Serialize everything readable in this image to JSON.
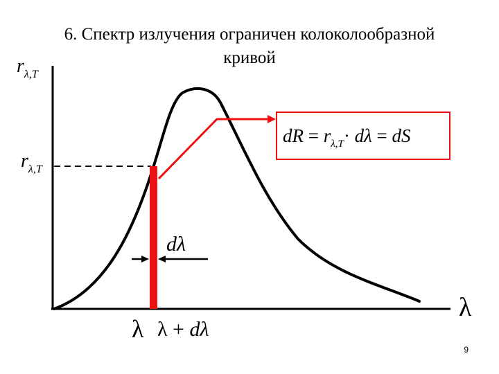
{
  "title": {
    "line1": "6. Спектр излучения ограничен колоколообразной",
    "line2": "кривой"
  },
  "axes": {
    "y_label_main": "r",
    "y_label_sub": "λ,T",
    "x_label": "λ"
  },
  "level_label": {
    "main": "r",
    "sub": "λ,T"
  },
  "strip": {
    "width_label": "dλ",
    "left_label": "λ",
    "right_label_lambda": "λ",
    "right_label_plus": "+",
    "right_label_d": "dλ"
  },
  "formula": {
    "dR": "dR",
    "eq1": "=",
    "r": "r",
    "r_sub": "λ,T",
    "dot": "·",
    "dlambda": "dλ",
    "eq2": "=",
    "dS": "dS"
  },
  "page_number": "9",
  "colors": {
    "curve": "#000000",
    "strip": "#ee1111",
    "box_border": "#ee1111",
    "pointer": "#ee1111"
  }
}
